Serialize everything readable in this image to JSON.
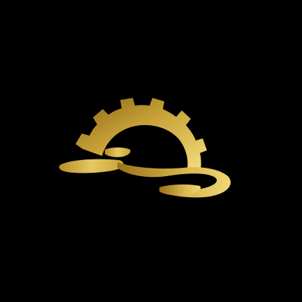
{
  "canvas": {
    "background": "#000000"
  },
  "logo": {
    "icon": "gold-gear-swoosh-icon",
    "colors": {
      "gold_dark": "#8a6412",
      "gold_mid": "#c9a338",
      "gold_light": "#f3de7c"
    }
  }
}
